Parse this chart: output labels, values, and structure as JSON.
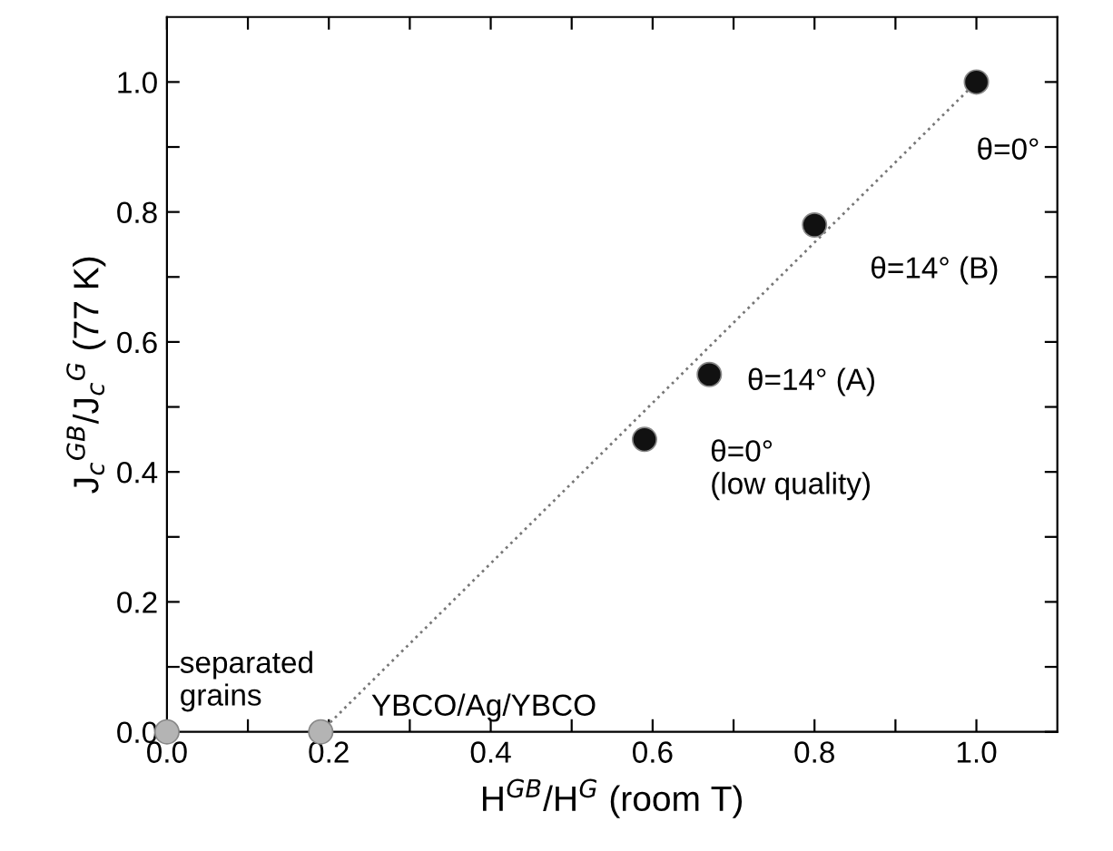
{
  "chart_data": {
    "type": "scatter",
    "xlabel": "H$^{GB}$/H$^{G}$ (room T)",
    "ylabel": "J$_{c}$$^{GB}$/J$_{c}$$^{G}$ (77 K)",
    "xlim": [
      0,
      1.1
    ],
    "ylim": [
      0,
      1.1
    ],
    "xticks": [
      {
        "value": 0.0,
        "label": "0.0"
      },
      {
        "value": 0.1,
        "label": null
      },
      {
        "value": 0.2,
        "label": "0.2"
      },
      {
        "value": 0.3,
        "label": null
      },
      {
        "value": 0.4,
        "label": "0.4"
      },
      {
        "value": 0.5,
        "label": null
      },
      {
        "value": 0.6,
        "label": "0.6"
      },
      {
        "value": 0.7,
        "label": null
      },
      {
        "value": 0.8,
        "label": "0.8"
      },
      {
        "value": 0.9,
        "label": null
      },
      {
        "value": 1.0,
        "label": "1.0"
      }
    ],
    "yticks": [
      {
        "value": 0.0,
        "label": "0.0"
      },
      {
        "value": 0.1,
        "label": null
      },
      {
        "value": 0.2,
        "label": "0.2"
      },
      {
        "value": 0.3,
        "label": null
      },
      {
        "value": 0.4,
        "label": "0.4"
      },
      {
        "value": 0.5,
        "label": null
      },
      {
        "value": 0.6,
        "label": "0.6"
      },
      {
        "value": 0.7,
        "label": null
      },
      {
        "value": 0.8,
        "label": "0.8"
      },
      {
        "value": 0.9,
        "label": null
      },
      {
        "value": 1.0,
        "label": "1.0"
      }
    ],
    "grid": false,
    "legend": false,
    "series": [
      {
        "type": "line",
        "line_style": "dotted",
        "color": "#777777",
        "x": [
          0.19,
          1.0
        ],
        "values": [
          0.0,
          1.0
        ]
      },
      {
        "marker": "circle",
        "color": "#b4b4b4",
        "x": [
          0.0,
          0.19
        ],
        "values": [
          0.0,
          0.0
        ]
      },
      {
        "marker": "circle",
        "color": "#111111",
        "x": [
          0.59,
          0.67,
          0.8,
          1.0
        ],
        "values": [
          0.45,
          0.55,
          0.78,
          1.0
        ]
      }
    ],
    "annotations": [
      {
        "text": "θ=0°",
        "x": 1.0,
        "y": 1.0
      },
      {
        "text": "θ=14° (B)",
        "x": 0.8,
        "y": 0.78
      },
      {
        "text": "θ=14° (A)",
        "x": 0.67,
        "y": 0.55
      },
      {
        "text": "θ=0°\n(low quality)",
        "x": 0.59,
        "y": 0.45
      },
      {
        "text": "separated\ngrains",
        "x": 0.0,
        "y": 0.0
      },
      {
        "text": "YBCO/Ag/YBCO",
        "x": 0.19,
        "y": 0.0
      }
    ]
  }
}
